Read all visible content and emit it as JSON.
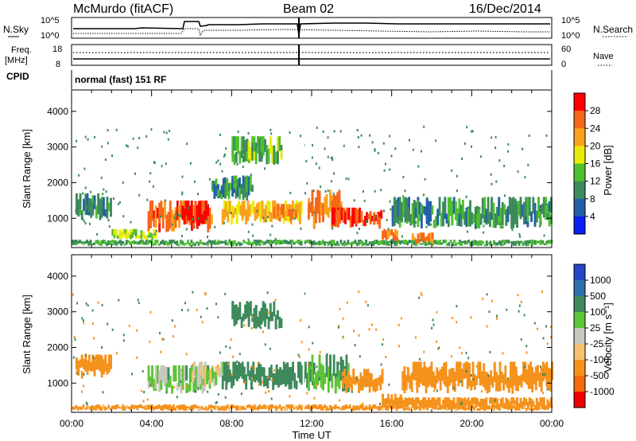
{
  "header": {
    "station": "McMurdo (fitACF)",
    "beam": "Beam 02",
    "date": "16/Dec/2014"
  },
  "noise_panel": {
    "left_label": "N.Sky",
    "right_label": "N.Search",
    "ticks_left": [
      "10^5",
      "10^0"
    ],
    "ticks_right": [
      "10^5",
      "10^0"
    ]
  },
  "freq_panel": {
    "left_label_1": "Freq.",
    "left_label_2": "[MHz]",
    "left_ticks": [
      "18",
      "8"
    ],
    "right_label": "Nave",
    "right_ticks": [
      "60",
      "0"
    ]
  },
  "cpid_panel": {
    "label": "CPID",
    "value": "normal (fast) 151 RF"
  },
  "axes": {
    "ylabel": "Slant Range [km]",
    "xlabel": "Time UT",
    "x_ticks": [
      "00:00",
      "04:00",
      "08:00",
      "12:00",
      "16:00",
      "20:00",
      "00:00"
    ],
    "y_ticks": [
      "1000",
      "2000",
      "3000",
      "4000"
    ]
  },
  "colorbars": {
    "power": {
      "label": "Power [dB]",
      "ticks": [
        "28",
        "24",
        "20",
        "16",
        "12",
        "8",
        "4"
      ],
      "colors": [
        "#ff0000",
        "#f6671b",
        "#f9a21e",
        "#eaeb0a",
        "#4fc030",
        "#3d8a5c",
        "#2360a8",
        "#0a20f4"
      ]
    },
    "velocity": {
      "label": "Velocity [m s⁻¹]",
      "ticks": [
        "1000",
        "500",
        "100",
        "25",
        "-25",
        "-100",
        "-500",
        "-1000"
      ],
      "colors": [
        "#2546c8",
        "#2e70a8",
        "#3e8a5c",
        "#5ec438",
        "#c8c8c0",
        "#f6c070",
        "#f5921c",
        "#f56a10",
        "#ee0000"
      ]
    }
  },
  "chart_data": [
    {
      "type": "heatmap",
      "title": "Power",
      "xlabel": "Time UT",
      "ylabel": "Slant Range [km]",
      "xlim": [
        0,
        24
      ],
      "ylim": [
        180,
        4600
      ],
      "colorbar": "Power [dB]",
      "clim": [
        0,
        30
      ],
      "regions": [
        {
          "t": [
            0.0,
            24.0
          ],
          "r": [
            220,
            400
          ],
          "value": 10
        },
        {
          "t": [
            0.2,
            2.0
          ],
          "r": [
            950,
            1700
          ],
          "value": 8
        },
        {
          "t": [
            2.0,
            4.2
          ],
          "r": [
            400,
            700
          ],
          "value": 14
        },
        {
          "t": [
            3.8,
            7.0
          ],
          "r": [
            600,
            1500
          ],
          "value": 24
        },
        {
          "t": [
            5.5,
            6.8
          ],
          "r": [
            800,
            1500
          ],
          "value": 28
        },
        {
          "t": [
            7.0,
            9.0
          ],
          "r": [
            1500,
            2200
          ],
          "value": 8
        },
        {
          "t": [
            8.0,
            10.5
          ],
          "r": [
            2500,
            3300
          ],
          "value": 12
        },
        {
          "t": [
            7.5,
            11.5
          ],
          "r": [
            800,
            1500
          ],
          "value": 18
        },
        {
          "t": [
            10.0,
            11.3
          ],
          "r": [
            900,
            1400
          ],
          "value": 22
        },
        {
          "t": [
            11.8,
            13.5
          ],
          "r": [
            700,
            1800
          ],
          "value": 22
        },
        {
          "t": [
            13.0,
            15.5
          ],
          "r": [
            700,
            1300
          ],
          "value": 26
        },
        {
          "t": [
            15.5,
            16.3
          ],
          "r": [
            350,
            700
          ],
          "value": 22
        },
        {
          "t": [
            16.0,
            24.0
          ],
          "r": [
            700,
            1600
          ],
          "value": 8
        },
        {
          "t": [
            17.0,
            18.0
          ],
          "r": [
            250,
            600
          ],
          "value": 22
        }
      ]
    },
    {
      "type": "heatmap",
      "title": "Velocity",
      "xlabel": "Time UT",
      "ylabel": "Slant Range [km]",
      "xlim": [
        0,
        24
      ],
      "ylim": [
        180,
        4600
      ],
      "colorbar": "Velocity [m s⁻¹]",
      "clim": [
        -1000,
        1000
      ],
      "regions": [
        {
          "t": [
            0.0,
            24.0
          ],
          "r": [
            220,
            400
          ],
          "value": -150
        },
        {
          "t": [
            0.2,
            2.0
          ],
          "r": [
            1100,
            1800
          ],
          "value": -200
        },
        {
          "t": [
            3.8,
            7.0
          ],
          "r": [
            700,
            1500
          ],
          "value": 60
        },
        {
          "t": [
            6.0,
            7.8
          ],
          "r": [
            900,
            1600
          ],
          "value": 0
        },
        {
          "t": [
            7.5,
            12.0
          ],
          "r": [
            800,
            1600
          ],
          "value": 200
        },
        {
          "t": [
            8.0,
            10.5
          ],
          "r": [
            2500,
            3300
          ],
          "value": 200
        },
        {
          "t": [
            11.8,
            13.8
          ],
          "r": [
            700,
            1800
          ],
          "value": 100
        },
        {
          "t": [
            13.5,
            15.5
          ],
          "r": [
            700,
            1400
          ],
          "value": -200
        },
        {
          "t": [
            15.5,
            16.5
          ],
          "r": [
            300,
            700
          ],
          "value": -250
        },
        {
          "t": [
            16.5,
            24.0
          ],
          "r": [
            700,
            1600
          ],
          "value": -200
        },
        {
          "t": [
            16.0,
            24.0
          ],
          "r": [
            250,
            600
          ],
          "value": -300
        }
      ]
    }
  ]
}
